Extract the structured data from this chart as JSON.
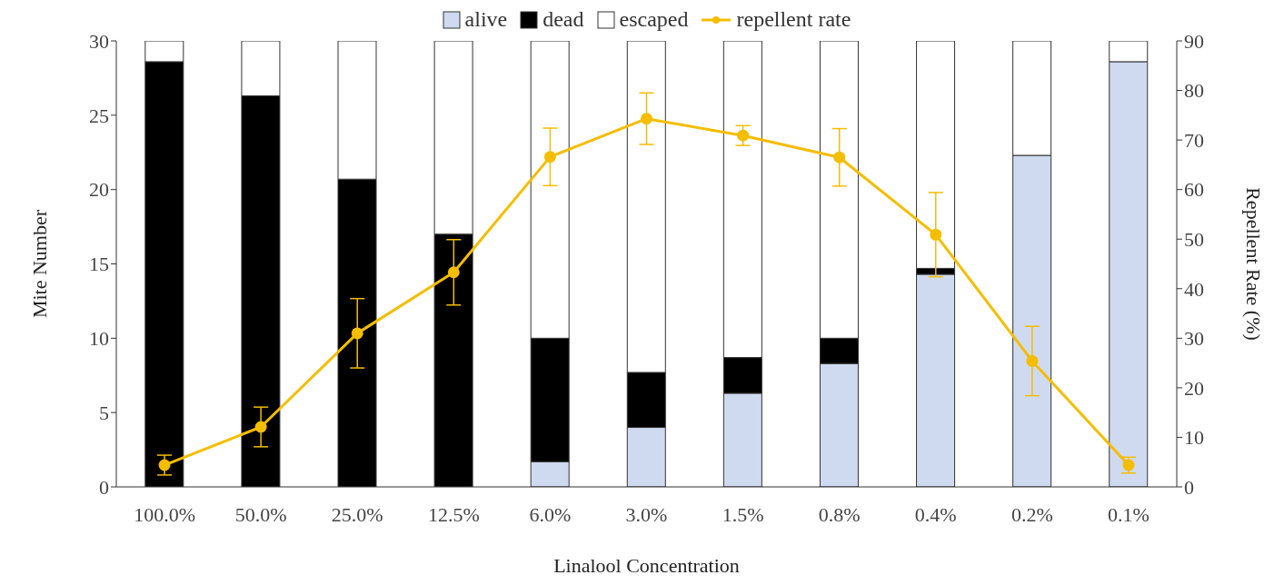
{
  "chart_data": {
    "type": "bar",
    "stacked": true,
    "xlabel": "Linalool Concentration",
    "ylabel": "Mite Number",
    "y2label": "Repellent Rate (%)",
    "categories": [
      "100.0%",
      "50.0%",
      "25.0%",
      "12.5%",
      "6.0%",
      "3.0%",
      "1.5%",
      "0.8%",
      "0.4%",
      "0.2%",
      "0.1%"
    ],
    "series": [
      {
        "name": "alive",
        "color": "#cfdaf0",
        "values": [
          0,
          0,
          0,
          0,
          1.7,
          4.0,
          6.3,
          8.3,
          14.3,
          22.3,
          28.6
        ]
      },
      {
        "name": "dead",
        "color": "#000000",
        "values": [
          28.6,
          26.3,
          20.7,
          17.0,
          8.3,
          3.7,
          2.4,
          1.7,
          0.4,
          0,
          0
        ]
      },
      {
        "name": "escaped",
        "color": "#ffffff",
        "values": [
          1.4,
          3.7,
          9.3,
          13.0,
          20.0,
          22.3,
          21.3,
          20.0,
          15.3,
          7.7,
          1.4
        ]
      },
      {
        "name": "repellent rate",
        "type": "line",
        "axis": "y2",
        "color": "#f5bd00",
        "marker": "circle",
        "line_style": "solid",
        "values": [
          4.4,
          12.1,
          31.0,
          43.3,
          66.6,
          74.3,
          70.9,
          66.5,
          50.9,
          25.4,
          4.4
        ],
        "errors": [
          2,
          4,
          7,
          6.6,
          5.8,
          5.2,
          2,
          5.8,
          8.5,
          7,
          1.6
        ]
      }
    ],
    "ylim": [
      0,
      30
    ],
    "yticks": [
      0,
      5,
      10,
      15,
      20,
      25,
      30
    ],
    "y2lim": [
      0,
      90
    ],
    "y2ticks": [
      0,
      10,
      20,
      30,
      40,
      50,
      60,
      70,
      80,
      90
    ],
    "legend": "top",
    "grid": false
  }
}
